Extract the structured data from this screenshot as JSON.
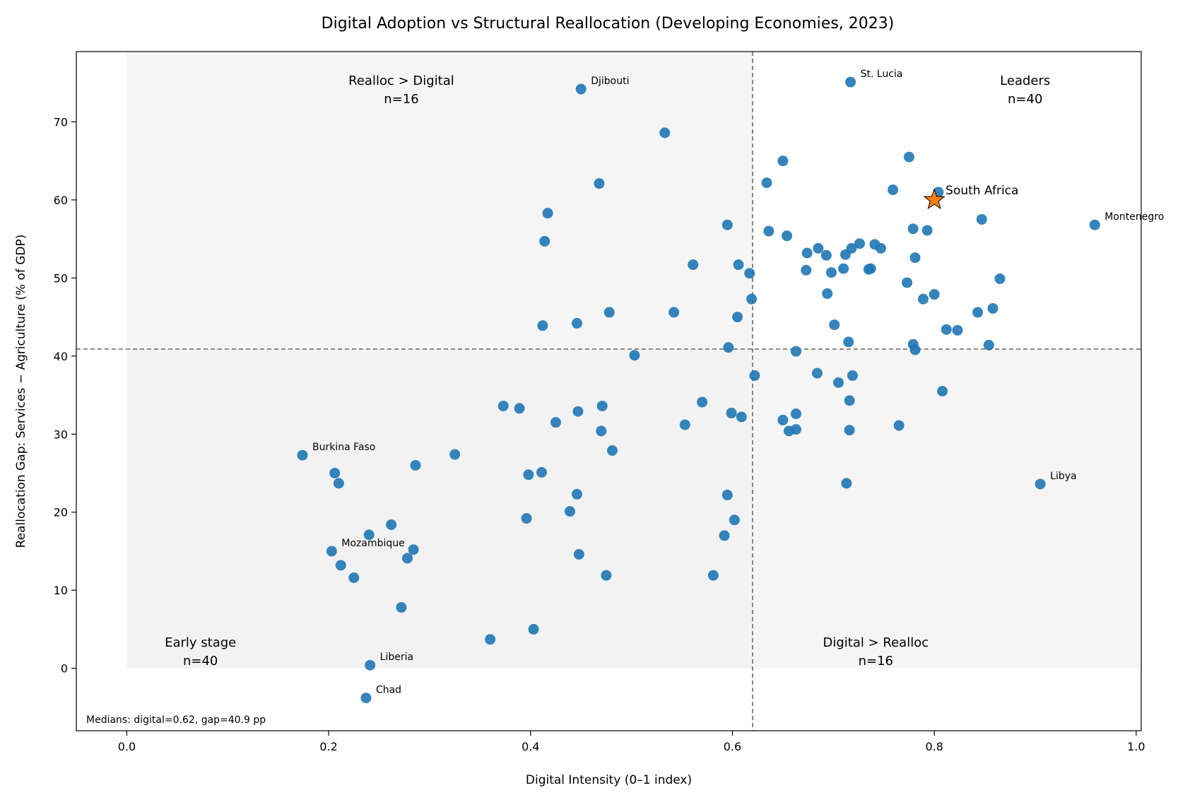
{
  "chart_data": {
    "type": "scatter",
    "title": "Digital Adoption vs Structural Reallocation (Developing Economies, 2023)",
    "xlabel": "Digital Intensity (0–1 index)",
    "ylabel": "Reallocation Gap: Services − Agriculture (% of GDP)",
    "xlim": [
      -0.05,
      1.005
    ],
    "ylim": [
      -8,
      79
    ],
    "x_ticks": [
      0.0,
      0.2,
      0.4,
      0.6,
      0.8,
      1.0
    ],
    "x_tick_labels": [
      "0.0",
      "0.2",
      "0.4",
      "0.6",
      "0.8",
      "1.0"
    ],
    "y_ticks": [
      0,
      10,
      20,
      30,
      40,
      50,
      60,
      70
    ],
    "y_tick_labels": [
      "0",
      "10",
      "20",
      "30",
      "40",
      "50",
      "60",
      "70"
    ],
    "grid": false,
    "point_color": "#1f77b4",
    "highlight_color": "#ff7f0e",
    "shade_color": "#eeeeee",
    "median_x": 0.62,
    "median_y": 40.9,
    "median_note": "Medians: digital=0.62, gap=40.9 pp",
    "quadrants": [
      {
        "name": "Realloc > Digital",
        "count": "n=16",
        "position": "top-left"
      },
      {
        "name": "Leaders",
        "count": "n=40",
        "position": "top-right"
      },
      {
        "name": "Early stage",
        "count": "n=40",
        "position": "bottom-left"
      },
      {
        "name": "Digital > Realloc",
        "count": "n=16",
        "position": "bottom-right"
      }
    ],
    "highlight": {
      "label": "South Africa",
      "x": 0.8,
      "y": 60.0
    },
    "labeled_points": [
      {
        "label": "Djibouti",
        "x": 0.45,
        "y": 74.2
      },
      {
        "label": "St. Lucia",
        "x": 0.717,
        "y": 75.1
      },
      {
        "label": "Montenegro",
        "x": 0.959,
        "y": 56.8
      },
      {
        "label": "Libya",
        "x": 0.905,
        "y": 23.6
      },
      {
        "label": "Burkina Faso",
        "x": 0.174,
        "y": 27.3
      },
      {
        "label": "Mozambique",
        "x": 0.203,
        "y": 15.0
      },
      {
        "label": "Liberia",
        "x": 0.241,
        "y": 0.4
      },
      {
        "label": "Chad",
        "x": 0.237,
        "y": -3.8
      }
    ],
    "points": [
      [
        0.206,
        25.0
      ],
      [
        0.21,
        23.7
      ],
      [
        0.212,
        13.2
      ],
      [
        0.225,
        11.6
      ],
      [
        0.24,
        17.1
      ],
      [
        0.262,
        18.4
      ],
      [
        0.284,
        15.2
      ],
      [
        0.278,
        14.1
      ],
      [
        0.272,
        7.8
      ],
      [
        0.286,
        26.0
      ],
      [
        0.325,
        27.4
      ],
      [
        0.36,
        3.7
      ],
      [
        0.373,
        33.6
      ],
      [
        0.389,
        33.3
      ],
      [
        0.396,
        19.2
      ],
      [
        0.398,
        24.8
      ],
      [
        0.403,
        5.0
      ],
      [
        0.411,
        25.1
      ],
      [
        0.412,
        43.9
      ],
      [
        0.414,
        54.7
      ],
      [
        0.417,
        58.3
      ],
      [
        0.425,
        31.5
      ],
      [
        0.439,
        20.1
      ],
      [
        0.446,
        22.3
      ],
      [
        0.446,
        44.2
      ],
      [
        0.447,
        32.9
      ],
      [
        0.448,
        14.6
      ],
      [
        0.468,
        62.1
      ],
      [
        0.47,
        30.4
      ],
      [
        0.471,
        33.6
      ],
      [
        0.475,
        11.9
      ],
      [
        0.478,
        45.6
      ],
      [
        0.481,
        27.9
      ],
      [
        0.503,
        40.1
      ],
      [
        0.533,
        68.6
      ],
      [
        0.542,
        45.6
      ],
      [
        0.553,
        31.2
      ],
      [
        0.561,
        51.7
      ],
      [
        0.57,
        34.1
      ],
      [
        0.581,
        11.9
      ],
      [
        0.592,
        17.0
      ],
      [
        0.595,
        56.8
      ],
      [
        0.595,
        22.2
      ],
      [
        0.596,
        41.1
      ],
      [
        0.599,
        32.7
      ],
      [
        0.602,
        19.0
      ],
      [
        0.605,
        45.0
      ],
      [
        0.606,
        51.7
      ],
      [
        0.609,
        32.2
      ],
      [
        0.617,
        50.6
      ],
      [
        0.619,
        47.3
      ],
      [
        0.622,
        37.5
      ],
      [
        0.634,
        62.2
      ],
      [
        0.636,
        56.0
      ],
      [
        0.65,
        65.0
      ],
      [
        0.65,
        31.8
      ],
      [
        0.654,
        55.4
      ],
      [
        0.656,
        30.4
      ],
      [
        0.663,
        30.6
      ],
      [
        0.663,
        32.6
      ],
      [
        0.663,
        40.6
      ],
      [
        0.673,
        51.0
      ],
      [
        0.674,
        53.2
      ],
      [
        0.684,
        37.8
      ],
      [
        0.685,
        53.8
      ],
      [
        0.693,
        52.9
      ],
      [
        0.694,
        48.0
      ],
      [
        0.698,
        50.7
      ],
      [
        0.701,
        44.0
      ],
      [
        0.705,
        36.6
      ],
      [
        0.71,
        51.2
      ],
      [
        0.712,
        53.0
      ],
      [
        0.713,
        23.7
      ],
      [
        0.715,
        41.8
      ],
      [
        0.716,
        34.3
      ],
      [
        0.716,
        30.5
      ],
      [
        0.718,
        53.8
      ],
      [
        0.719,
        37.5
      ],
      [
        0.726,
        54.4
      ],
      [
        0.735,
        51.1
      ],
      [
        0.737,
        51.2
      ],
      [
        0.741,
        54.3
      ],
      [
        0.747,
        53.8
      ],
      [
        0.759,
        61.3
      ],
      [
        0.765,
        31.1
      ],
      [
        0.773,
        49.4
      ],
      [
        0.775,
        65.5
      ],
      [
        0.779,
        56.3
      ],
      [
        0.779,
        41.5
      ],
      [
        0.781,
        52.6
      ],
      [
        0.781,
        40.8
      ],
      [
        0.789,
        47.3
      ],
      [
        0.793,
        56.1
      ],
      [
        0.8,
        47.9
      ],
      [
        0.804,
        61.0
      ],
      [
        0.808,
        35.5
      ],
      [
        0.812,
        43.4
      ],
      [
        0.823,
        43.3
      ],
      [
        0.843,
        45.6
      ],
      [
        0.847,
        57.5
      ],
      [
        0.854,
        41.4
      ],
      [
        0.858,
        46.1
      ],
      [
        0.865,
        49.9
      ]
    ]
  }
}
